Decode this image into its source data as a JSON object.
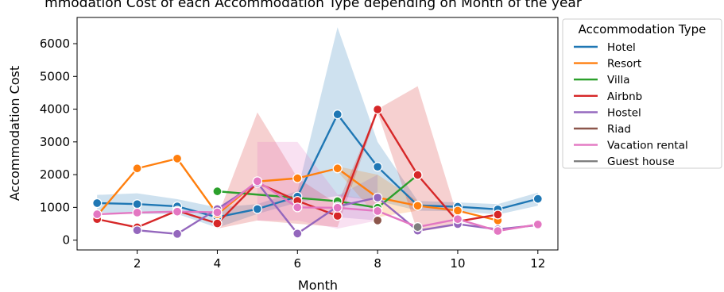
{
  "chart_data": {
    "type": "line",
    "title": "mmodation Cost of each Accommodation Type depending on Month of the year",
    "xlabel": "Month",
    "ylabel": "Accommodation Cost",
    "xlim": [
      0.5,
      12.5
    ],
    "ylim": [
      -300,
      6800
    ],
    "xticks": [
      2,
      4,
      6,
      8,
      10,
      12
    ],
    "yticks": [
      0,
      1000,
      2000,
      3000,
      4000,
      5000,
      6000
    ],
    "legend": {
      "title": "Accommodation Type",
      "position": "outside-right"
    },
    "grid": false,
    "series": [
      {
        "name": "Hotel",
        "color": "#1f77b4",
        "points": [
          [
            1,
            1130
          ],
          [
            2,
            1100
          ],
          [
            3,
            1030
          ],
          [
            4,
            700
          ],
          [
            5,
            950
          ],
          [
            6,
            1330
          ],
          [
            7,
            3840
          ],
          [
            8,
            2240
          ],
          [
            9,
            1060
          ],
          [
            10,
            1020
          ],
          [
            11,
            940
          ],
          [
            12,
            1260
          ]
        ],
        "band": [
          [
            1,
            1380,
            850
          ],
          [
            2,
            1430,
            800
          ],
          [
            3,
            1250,
            800
          ],
          [
            4,
            1000,
            380
          ],
          [
            5,
            1100,
            800
          ],
          [
            6,
            1500,
            1150
          ],
          [
            7,
            6500,
            1350
          ],
          [
            8,
            3000,
            1200
          ],
          [
            9,
            1200,
            900
          ],
          [
            10,
            1150,
            880
          ],
          [
            11,
            1100,
            780
          ],
          [
            12,
            1450,
            1050
          ]
        ]
      },
      {
        "name": "Resort",
        "color": "#ff7f0e",
        "points": [
          [
            1,
            750
          ],
          [
            2,
            2190
          ],
          [
            3,
            2490
          ],
          [
            4,
            790
          ],
          [
            5,
            1790
          ],
          [
            6,
            1890
          ],
          [
            7,
            2190
          ],
          [
            8,
            1300
          ],
          [
            9,
            1050
          ],
          [
            10,
            900
          ],
          [
            11,
            600
          ]
        ],
        "band": [
          [
            7,
            2250,
            2100
          ],
          [
            8,
            2000,
            700
          ],
          [
            9,
            1200,
            900
          ]
        ]
      },
      {
        "name": "Villa",
        "color": "#2ca02c",
        "points": [
          [
            4,
            1490
          ],
          [
            7,
            1190
          ],
          [
            8,
            990
          ],
          [
            9,
            1990
          ]
        ]
      },
      {
        "name": "Airbnb",
        "color": "#d62728",
        "points": [
          [
            1,
            640
          ],
          [
            2,
            390
          ],
          [
            3,
            900
          ],
          [
            4,
            510
          ],
          [
            5,
            1750
          ],
          [
            6,
            1200
          ],
          [
            7,
            740
          ],
          [
            8,
            3990
          ],
          [
            9,
            1990
          ],
          [
            10,
            570
          ],
          [
            11,
            780
          ]
        ],
        "band": [
          [
            4,
            700,
            350
          ],
          [
            5,
            3900,
            600
          ],
          [
            6,
            1900,
            500
          ],
          [
            7,
            1100,
            400
          ],
          [
            8,
            4000,
            3900
          ],
          [
            9,
            4700,
            250
          ],
          [
            10,
            700,
            450
          ]
        ]
      },
      {
        "name": "Hostel",
        "color": "#9467bd",
        "points": [
          [
            2,
            300
          ],
          [
            3,
            190
          ],
          [
            4,
            950
          ],
          [
            5,
            1750
          ],
          [
            6,
            200
          ],
          [
            7,
            1030
          ],
          [
            8,
            1300
          ],
          [
            9,
            290
          ],
          [
            10,
            490
          ],
          [
            11,
            330
          ],
          [
            12,
            460
          ]
        ],
        "band": [
          [
            7,
            1350,
            700
          ],
          [
            8,
            2000,
            600
          ]
        ]
      },
      {
        "name": "Riad",
        "color": "#8c564b",
        "points": [
          [
            8,
            600
          ]
        ]
      },
      {
        "name": "Vacation rental",
        "color": "#e377c2",
        "points": [
          [
            1,
            790
          ],
          [
            2,
            840
          ],
          [
            3,
            870
          ],
          [
            4,
            850
          ],
          [
            5,
            1800
          ],
          [
            6,
            1000
          ],
          [
            7,
            990
          ],
          [
            8,
            890
          ],
          [
            9,
            400
          ],
          [
            10,
            640
          ],
          [
            11,
            280
          ],
          [
            12,
            480
          ]
        ],
        "band": [
          [
            5,
            3000,
            600
          ],
          [
            6,
            3000,
            600
          ],
          [
            7,
            1400,
            350
          ],
          [
            8,
            1200,
            600
          ]
        ]
      },
      {
        "name": "Guest house",
        "color": "#7f7f7f",
        "points": [
          [
            9,
            400
          ]
        ]
      }
    ]
  }
}
